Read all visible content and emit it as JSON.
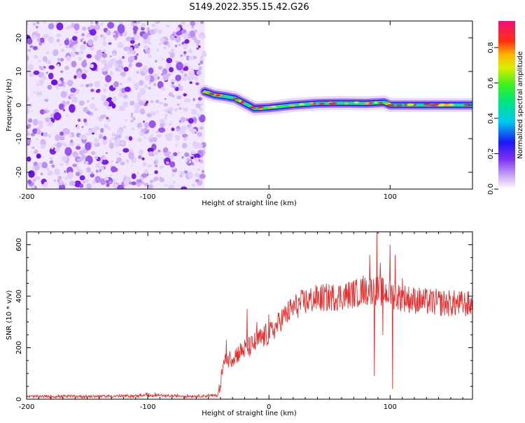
{
  "title": "S149.2022.355.15.42.G26",
  "colors": {
    "snr_line": "#e8302f",
    "scatter_noise": "#8a3cf0",
    "track_core": "#e8302f"
  },
  "chart_data": [
    {
      "type": "heatmap",
      "name": "spectrogram",
      "xlabel": "Height of straight line (km)",
      "ylabel": "Frequency (Hz)",
      "xlim": [
        -200,
        168
      ],
      "ylim": [
        -25,
        25
      ],
      "xticks": [
        -200,
        -100,
        0,
        100
      ],
      "xtick_labels": [
        "-200",
        "-100",
        "0",
        "100"
      ],
      "yticks": [
        -20,
        -10,
        0,
        10,
        20
      ],
      "ytick_labels": [
        "-20",
        "-10",
        "0",
        "10",
        "20"
      ],
      "noise_region_x": [
        -200,
        -53
      ],
      "track": [
        {
          "x": -53,
          "y": 4
        },
        {
          "x": -45,
          "y": 3
        },
        {
          "x": -35,
          "y": 2.5
        },
        {
          "x": -28,
          "y": 2
        },
        {
          "x": -20,
          "y": 0.5
        },
        {
          "x": -12,
          "y": -1
        },
        {
          "x": 0,
          "y": -0.8
        },
        {
          "x": 20,
          "y": 0
        },
        {
          "x": 40,
          "y": 0.5
        },
        {
          "x": 60,
          "y": 0.6
        },
        {
          "x": 80,
          "y": 0.5
        },
        {
          "x": 95,
          "y": 0.8
        },
        {
          "x": 100,
          "y": 0
        },
        {
          "x": 120,
          "y": 0
        },
        {
          "x": 140,
          "y": 0
        },
        {
          "x": 168,
          "y": 0
        }
      ],
      "colorbar": {
        "label": "Normalized spectral amplitude",
        "range": [
          0,
          0.95
        ],
        "ticks": [
          0.0,
          0.2,
          0.4,
          0.6,
          0.8
        ],
        "tick_labels": [
          "0.0",
          "0.2",
          "0.4",
          "0.6",
          "0.8"
        ]
      }
    },
    {
      "type": "line",
      "name": "snr",
      "xlabel": "Height of straight line (km)",
      "ylabel": "SNR (10 * v/v)",
      "xlim": [
        -200,
        168
      ],
      "ylim": [
        0,
        650
      ],
      "xticks": [
        -200,
        -100,
        0,
        100
      ],
      "xtick_labels": [
        "-200",
        "-100",
        "0",
        "100"
      ],
      "yticks": [
        0,
        200,
        400,
        600
      ],
      "ytick_labels": [
        "0",
        "200",
        "400",
        "600"
      ],
      "series": [
        {
          "name": "SNR",
          "x": [
            -200,
            -150,
            -100,
            -60,
            -42,
            -40,
            -38,
            -35,
            -30,
            -25,
            -20,
            -15,
            -10,
            -5,
            0,
            5,
            10,
            20,
            30,
            40,
            50,
            60,
            70,
            80,
            85,
            90,
            95,
            100,
            105,
            110,
            120,
            130,
            140,
            150,
            160,
            168
          ],
          "y": [
            10,
            11,
            13,
            12,
            15,
            60,
            130,
            150,
            165,
            180,
            195,
            205,
            225,
            240,
            255,
            275,
            310,
            355,
            380,
            392,
            395,
            400,
            410,
            420,
            425,
            420,
            415,
            410,
            400,
            395,
            385,
            378,
            375,
            372,
            370,
            368
          ],
          "spikes": [
            {
              "x": -35,
              "y": 230
            },
            {
              "x": -18,
              "y": 350
            },
            {
              "x": -10,
              "y": 300
            },
            {
              "x": 0,
              "y": 330
            },
            {
              "x": 78,
              "y": 480
            },
            {
              "x": 83,
              "y": 560
            },
            {
              "x": 87,
              "y": 90
            },
            {
              "x": 89,
              "y": 650
            },
            {
              "x": 92,
              "y": 530
            },
            {
              "x": 94,
              "y": 250
            },
            {
              "x": 100,
              "y": 600
            },
            {
              "x": 102,
              "y": 40
            },
            {
              "x": 104,
              "y": 560
            },
            {
              "x": 110,
              "y": 470
            }
          ]
        }
      ]
    }
  ]
}
